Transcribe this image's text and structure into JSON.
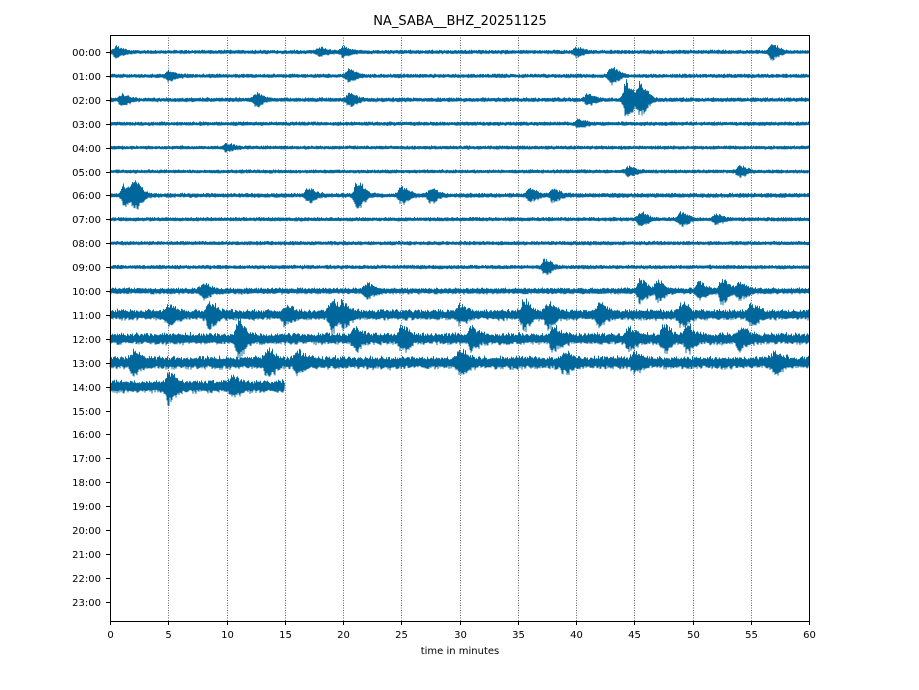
{
  "chart_data": {
    "type": "line",
    "title": "NA_SABA__BHZ_20251125",
    "xlabel": "time in minutes",
    "ylabel": "",
    "xlim": [
      0,
      60
    ],
    "x_ticks": [
      0,
      5,
      10,
      15,
      20,
      25,
      30,
      35,
      40,
      45,
      50,
      55,
      60
    ],
    "hour_labels": [
      "00:00",
      "01:00",
      "02:00",
      "03:00",
      "04:00",
      "05:00",
      "06:00",
      "07:00",
      "08:00",
      "09:00",
      "10:00",
      "11:00",
      "12:00",
      "13:00",
      "14:00",
      "15:00",
      "16:00",
      "17:00",
      "18:00",
      "19:00",
      "20:00",
      "21:00",
      "22:00",
      "23:00"
    ],
    "grid": "vertical dotted lines at x ticks",
    "trace_color": "#00679c",
    "traces": [
      {
        "hour": "00:00",
        "start_min": 0,
        "end_min": 60,
        "noise": 0.12,
        "bursts": [
          {
            "t": 0.5,
            "amp": 0.35
          },
          {
            "t": 18,
            "amp": 0.25
          },
          {
            "t": 20,
            "amp": 0.3
          },
          {
            "t": 40,
            "amp": 0.3
          },
          {
            "t": 56.8,
            "amp": 0.5
          }
        ]
      },
      {
        "hour": "01:00",
        "start_min": 0,
        "end_min": 60,
        "noise": 0.12,
        "bursts": [
          {
            "t": 5,
            "amp": 0.3
          },
          {
            "t": 20.5,
            "amp": 0.4
          },
          {
            "t": 43,
            "amp": 0.6
          }
        ]
      },
      {
        "hour": "02:00",
        "start_min": 0,
        "end_min": 60,
        "noise": 0.13,
        "bursts": [
          {
            "t": 1,
            "amp": 0.35
          },
          {
            "t": 12.5,
            "amp": 0.45
          },
          {
            "t": 20.5,
            "amp": 0.4
          },
          {
            "t": 41,
            "amp": 0.35
          },
          {
            "t": 44.3,
            "amp": 1.35
          },
          {
            "t": 45.5,
            "amp": 1.1
          }
        ]
      },
      {
        "hour": "03:00",
        "start_min": 0,
        "end_min": 60,
        "noise": 0.12,
        "bursts": [
          {
            "t": 40.2,
            "amp": 0.25
          }
        ]
      },
      {
        "hour": "04:00",
        "start_min": 0,
        "end_min": 60,
        "noise": 0.11,
        "bursts": [
          {
            "t": 10,
            "amp": 0.25
          }
        ]
      },
      {
        "hour": "05:00",
        "start_min": 0,
        "end_min": 60,
        "noise": 0.11,
        "bursts": [
          {
            "t": 44.5,
            "amp": 0.3
          },
          {
            "t": 54,
            "amp": 0.35
          }
        ]
      },
      {
        "hour": "06:00",
        "start_min": 0,
        "end_min": 60,
        "noise": 0.14,
        "bursts": [
          {
            "t": 1.2,
            "amp": 0.7
          },
          {
            "t": 2.1,
            "amp": 0.95
          },
          {
            "t": 17,
            "amp": 0.45
          },
          {
            "t": 21.2,
            "amp": 0.95
          },
          {
            "t": 25,
            "amp": 0.55
          },
          {
            "t": 27.5,
            "amp": 0.5
          },
          {
            "t": 36,
            "amp": 0.4
          },
          {
            "t": 38,
            "amp": 0.4
          }
        ]
      },
      {
        "hour": "07:00",
        "start_min": 0,
        "end_min": 60,
        "noise": 0.12,
        "bursts": [
          {
            "t": 45.5,
            "amp": 0.5
          },
          {
            "t": 49,
            "amp": 0.45
          },
          {
            "t": 52,
            "amp": 0.3
          }
        ]
      },
      {
        "hour": "08:00",
        "start_min": 0,
        "end_min": 60,
        "noise": 0.12,
        "bursts": []
      },
      {
        "hour": "09:00",
        "start_min": 0,
        "end_min": 60,
        "noise": 0.12,
        "bursts": [
          {
            "t": 37.3,
            "amp": 0.5
          }
        ]
      },
      {
        "hour": "10:00",
        "start_min": 0,
        "end_min": 60,
        "noise": 0.2,
        "bursts": [
          {
            "t": 8,
            "amp": 0.45
          },
          {
            "t": 22,
            "amp": 0.45
          },
          {
            "t": 45.5,
            "amp": 0.8
          },
          {
            "t": 47,
            "amp": 0.6
          },
          {
            "t": 50.5,
            "amp": 0.55
          },
          {
            "t": 52.5,
            "amp": 0.8
          },
          {
            "t": 54,
            "amp": 0.5
          }
        ]
      },
      {
        "hour": "11:00",
        "start_min": 0,
        "end_min": 60,
        "noise": 0.35,
        "bursts": [
          {
            "t": 5,
            "amp": 0.55
          },
          {
            "t": 8.5,
            "amp": 0.75
          },
          {
            "t": 15,
            "amp": 0.5
          },
          {
            "t": 19,
            "amp": 1.05
          },
          {
            "t": 20,
            "amp": 0.6
          },
          {
            "t": 30,
            "amp": 0.45
          },
          {
            "t": 35.5,
            "amp": 0.85
          },
          {
            "t": 37.5,
            "amp": 0.75
          },
          {
            "t": 42,
            "amp": 0.6
          },
          {
            "t": 49,
            "amp": 0.7
          },
          {
            "t": 55,
            "amp": 0.55
          }
        ]
      },
      {
        "hour": "12:00",
        "start_min": 0,
        "end_min": 60,
        "noise": 0.38,
        "bursts": [
          {
            "t": 11,
            "amp": 1.05
          },
          {
            "t": 21,
            "amp": 0.6
          },
          {
            "t": 25,
            "amp": 0.7
          },
          {
            "t": 31,
            "amp": 0.6
          },
          {
            "t": 38,
            "amp": 0.65
          },
          {
            "t": 44.5,
            "amp": 0.6
          },
          {
            "t": 47.5,
            "amp": 0.8
          },
          {
            "t": 49.5,
            "amp": 0.75
          },
          {
            "t": 54,
            "amp": 0.6
          }
        ]
      },
      {
        "hour": "13:00",
        "start_min": 0,
        "end_min": 60,
        "noise": 0.42,
        "bursts": [
          {
            "t": 2,
            "amp": 0.6
          },
          {
            "t": 13.5,
            "amp": 0.85
          },
          {
            "t": 16,
            "amp": 0.6
          },
          {
            "t": 30,
            "amp": 0.6
          },
          {
            "t": 39,
            "amp": 0.55
          },
          {
            "t": 45,
            "amp": 0.5
          },
          {
            "t": 57,
            "amp": 0.5
          }
        ]
      },
      {
        "hour": "14:00",
        "start_min": 0,
        "end_min": 15,
        "noise": 0.42,
        "bursts": [
          {
            "t": 5,
            "amp": 0.9
          },
          {
            "t": 10.5,
            "amp": 0.5
          }
        ]
      }
    ]
  }
}
